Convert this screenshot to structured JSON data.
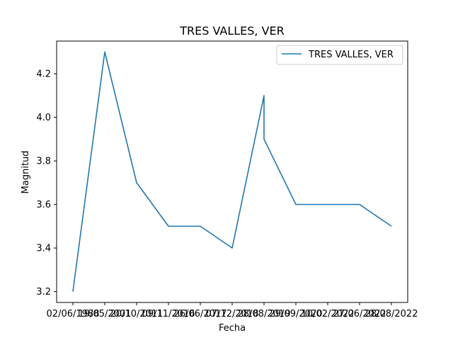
{
  "chart_data": {
    "type": "line",
    "title": "TRES VALLES, VER",
    "xlabel": "Fecha",
    "ylabel": "Magnitud",
    "ylim": [
      3.15,
      4.35
    ],
    "yticks": [
      3.2,
      3.4,
      3.6,
      3.8,
      4.0,
      4.2
    ],
    "ytick_labels": [
      "3.2",
      "3.4",
      "3.6",
      "3.8",
      "4.0",
      "4.2"
    ],
    "xtick_labels": [
      "02/06/1988",
      "19/05/2001",
      "20/10/2011",
      "09/11/2016",
      "26/06/2017",
      "07/12/2018",
      "28/08/2019",
      "29/09/2020",
      "10/02/2022",
      "27/06/2022",
      "28/08/2022"
    ],
    "x_index": [
      0,
      1,
      2,
      3,
      4,
      5,
      6,
      6,
      7,
      8,
      9,
      10
    ],
    "values": [
      3.2,
      4.3,
      3.7,
      3.5,
      3.5,
      3.4,
      4.1,
      3.9,
      3.6,
      3.6,
      3.6,
      3.5
    ],
    "grid": false,
    "legend_position": "top-right",
    "series": [
      {
        "name": "TRES VALLES, VER",
        "color": "#1f77b4"
      }
    ]
  }
}
